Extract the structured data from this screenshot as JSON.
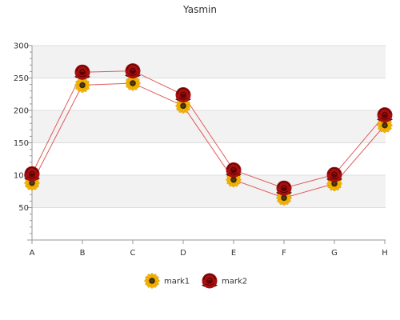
{
  "chart_data": {
    "type": "line",
    "title": "Yasmin",
    "categories": [
      "A",
      "B",
      "C",
      "D",
      "E",
      "F",
      "G",
      "H"
    ],
    "y_ticks": [
      "50",
      "100",
      "150",
      "200",
      "250",
      "300"
    ],
    "ylim": [
      0,
      300
    ],
    "grid": true,
    "legend_position": "bottom",
    "series": [
      {
        "name": "mark1",
        "values": [
          88,
          239,
          242,
          207,
          93,
          65,
          87,
          177
        ],
        "marker": "sunflower-icon"
      },
      {
        "name": "mark2",
        "values": [
          102,
          259,
          261,
          224,
          108,
          80,
          101,
          193
        ],
        "marker": "rose-icon"
      }
    ],
    "colors": {
      "line": "#e05a5a",
      "band": "#f2f2f2",
      "gridline": "#dddddd",
      "axis": "#999999",
      "sunflower_petal": "#f5b400",
      "sunflower_center": "#3a2a0a",
      "rose_petal": "#a50f0f",
      "rose_dark": "#5e0202"
    }
  }
}
